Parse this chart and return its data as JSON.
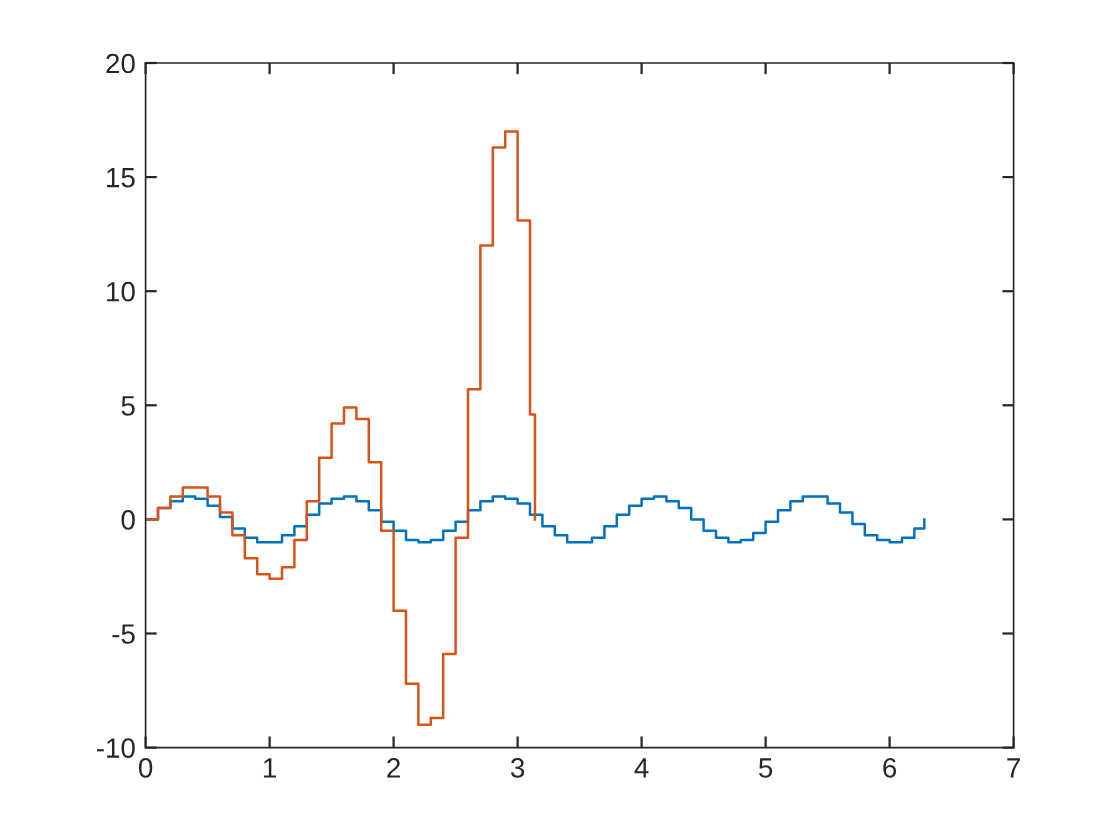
{
  "chart_data": {
    "type": "step",
    "xlim": [
      0,
      7
    ],
    "xticks": [
      0,
      1,
      2,
      3,
      4,
      5,
      6,
      7
    ],
    "ylim": [
      -10,
      20
    ],
    "yticks": [
      -10,
      -5,
      0,
      5,
      10,
      15,
      20
    ],
    "grid": false,
    "series": [
      {
        "color": "#0072bd",
        "x": [
          0,
          0.1,
          0.2,
          0.3,
          0.4,
          0.5,
          0.6,
          0.7,
          0.8,
          0.9,
          1.0,
          1.1,
          1.2,
          1.3,
          1.4,
          1.5,
          1.6,
          1.7,
          1.8,
          1.9,
          2.0,
          2.1,
          2.2,
          2.3,
          2.4,
          2.5,
          2.6,
          2.7,
          2.8,
          2.9,
          3.0,
          3.1,
          3.2,
          3.3,
          3.4,
          3.5,
          3.6,
          3.7,
          3.8,
          3.9,
          4.0,
          4.1,
          4.2,
          4.3,
          4.4,
          4.5,
          4.6,
          4.7,
          4.8,
          4.9,
          5.0,
          5.1,
          5.2,
          5.3,
          5.4,
          5.5,
          5.6,
          5.7,
          5.8,
          5.9,
          6.0,
          6.1,
          6.2,
          6.28
        ],
        "values": [
          0,
          0.5,
          0.8,
          1,
          0.9,
          0.6,
          0.1,
          -0.4,
          -0.8,
          -1,
          -1,
          -0.7,
          -0.3,
          0.2,
          0.7,
          0.9,
          1,
          0.8,
          0.4,
          -0.1,
          -0.5,
          -0.9,
          -1,
          -0.9,
          -0.5,
          -0.1,
          0.4,
          0.8,
          1,
          0.9,
          0.7,
          0.2,
          -0.3,
          -0.7,
          -1,
          -1,
          -0.8,
          -0.3,
          0.2,
          0.6,
          0.9,
          1,
          0.8,
          0.5,
          0,
          -0.5,
          -0.8,
          -1,
          -0.9,
          -0.6,
          -0.1,
          0.4,
          0.8,
          1,
          1,
          0.7,
          0.3,
          -0.2,
          -0.7,
          -0.9,
          -1,
          -0.8,
          -0.4,
          0
        ]
      },
      {
        "color": "#d95319",
        "x": [
          0,
          0.1,
          0.2,
          0.3,
          0.4,
          0.5,
          0.6,
          0.7,
          0.8,
          0.9,
          1.0,
          1.1,
          1.2,
          1.3,
          1.4,
          1.5,
          1.6,
          1.7,
          1.8,
          1.9,
          2.0,
          2.1,
          2.2,
          2.3,
          2.4,
          2.5,
          2.6,
          2.7,
          2.8,
          2.9,
          3.0,
          3.1,
          3.14
        ],
        "values": [
          0,
          0.5,
          1,
          1.4,
          1.4,
          1,
          0.3,
          -0.7,
          -1.7,
          -2.4,
          -2.6,
          -2.1,
          -0.9,
          0.8,
          2.7,
          4.2,
          4.9,
          4.4,
          2.5,
          -0.5,
          -4,
          -7.2,
          -9,
          -8.7,
          -5.9,
          -0.8,
          5.7,
          12,
          16.3,
          17,
          13.1,
          4.6,
          0
        ]
      }
    ]
  }
}
